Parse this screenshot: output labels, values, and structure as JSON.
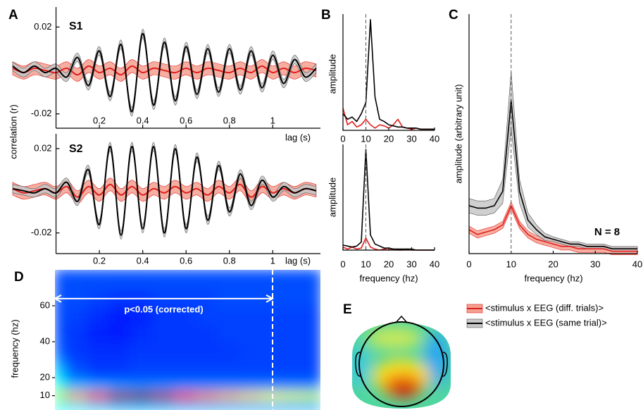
{
  "chart_data": [
    {
      "type": "line",
      "panel": "A",
      "subtitle": "S1",
      "ylabel": "correlation (r)",
      "xlabel": "lag (s)",
      "smooth": true,
      "x": [
        -0.2,
        -0.15,
        -0.1,
        -0.05,
        0,
        0.05,
        0.1,
        0.15,
        0.2,
        0.25,
        0.3,
        0.35,
        0.4,
        0.45,
        0.5,
        0.55,
        0.6,
        0.65,
        0.7,
        0.75,
        0.8,
        0.85,
        0.9,
        0.95,
        1,
        1.05,
        1.1,
        1.15,
        1.2
      ],
      "xlim": [
        -0.2,
        1.22
      ],
      "xticks": [
        0.2,
        0.4,
        0.6,
        0.8,
        1
      ],
      "ylim": [
        -0.0266,
        0.0292
      ],
      "yticks": [
        0.02,
        -0.02
      ],
      "series": [
        {
          "color": "#e0201f",
          "fill": "#f4a090",
          "error": 0.003,
          "values": [
            0.001,
            -0.001,
            0.001,
            0,
            -0.001,
            0.001,
            -0.002,
            0.002,
            -0.001,
            0.001,
            -0.002,
            0.002,
            -0.001,
            0.001,
            0,
            -0.001,
            0.001,
            -0.001,
            0.001,
            0,
            -0.001,
            0.001,
            -0.001,
            0.002,
            -0.001,
            0.001,
            -0.001,
            0.001,
            0
          ]
        },
        {
          "color": "#000000",
          "fill": "#c8c8c8",
          "error": 0.002,
          "values": [
            0.002,
            -0.001,
            0.002,
            -0.001,
            0.001,
            -0.003,
            0.006,
            -0.007,
            0.009,
            -0.012,
            0.012,
            -0.019,
            0.017,
            -0.016,
            0.013,
            -0.014,
            0.011,
            -0.011,
            0.01,
            -0.01,
            0.01,
            -0.009,
            0.009,
            -0.008,
            0.007,
            -0.006,
            0.005,
            -0.003,
            0.001
          ]
        }
      ]
    },
    {
      "type": "line",
      "subtitle": "S2",
      "xlabel": "lag (s)",
      "smooth": true,
      "x": [
        -0.2,
        -0.15,
        -0.1,
        -0.05,
        0,
        0.05,
        0.1,
        0.15,
        0.2,
        0.25,
        0.3,
        0.35,
        0.4,
        0.45,
        0.5,
        0.55,
        0.6,
        0.65,
        0.7,
        0.75,
        0.8,
        0.85,
        0.9,
        0.95,
        1,
        1.05,
        1.1,
        1.15,
        1.2
      ],
      "xlim": [
        -0.2,
        1.22
      ],
      "xticks": [
        0.2,
        0.4,
        0.6,
        0.8,
        1
      ],
      "ylim": [
        -0.0298,
        0.027
      ],
      "yticks": [
        0.02,
        -0.02
      ],
      "series": [
        {
          "color": "#e0201f",
          "fill": "#f4a090",
          "error": 0.003,
          "values": [
            0.001,
            -0.001,
            0,
            0.001,
            -0.001,
            0.002,
            -0.003,
            0.002,
            -0.002,
            0.003,
            -0.002,
            0.002,
            -0.002,
            0.001,
            -0.001,
            0.002,
            -0.001,
            0.001,
            -0.002,
            0.002,
            -0.001,
            0.003,
            -0.003,
            0.002,
            -0.001,
            0.001,
            -0.001,
            0.001,
            0
          ]
        },
        {
          "color": "#000000",
          "fill": "#c8c8c8",
          "error": 0.002,
          "values": [
            0.001,
            0,
            -0.001,
            0.001,
            -0.001,
            0.004,
            -0.005,
            0.01,
            -0.016,
            0.021,
            -0.021,
            0.021,
            -0.018,
            0.021,
            -0.02,
            0.02,
            -0.018,
            0.016,
            -0.014,
            0.012,
            -0.01,
            0.008,
            -0.007,
            0.005,
            -0.003,
            0.002,
            -0.001,
            0.001,
            0
          ]
        }
      ]
    },
    {
      "type": "line",
      "panel": "B",
      "ylabel": "amplitude",
      "marker_x": 10,
      "x": [
        0,
        2,
        4,
        6,
        8,
        10,
        12,
        14,
        16,
        18,
        20,
        22,
        24,
        26,
        28,
        30,
        32,
        34,
        36,
        38,
        40
      ],
      "xlim": [
        0,
        40
      ],
      "xticks": [
        0,
        10,
        20,
        30,
        40
      ],
      "ylim": [
        0,
        1.05
      ],
      "series": [
        {
          "color": "#e0201f",
          "values": [
            0.2,
            0.05,
            0.08,
            0.03,
            0.05,
            0.1,
            0.05,
            0.02,
            0.05,
            0.04,
            0.02,
            0.05,
            0.1,
            0.03,
            0.02,
            0.01,
            0.02,
            0.01,
            0.01,
            0.01,
            0.01
          ]
        },
        {
          "color": "#000000",
          "values": [
            0.15,
            0.1,
            0.12,
            0.08,
            0.15,
            0.25,
            1.0,
            0.3,
            0.1,
            0.08,
            0.05,
            0.04,
            0.03,
            0.03,
            0.02,
            0.02,
            0.02,
            0.01,
            0.01,
            0.01,
            0.01
          ]
        }
      ]
    },
    {
      "type": "line",
      "ylabel": "amplitude",
      "xlabel": "frequency (hz)",
      "marker_x": 10,
      "x": [
        0,
        2,
        4,
        6,
        8,
        10,
        12,
        14,
        16,
        18,
        20,
        22,
        24,
        26,
        28,
        30,
        32,
        34,
        36,
        38,
        40
      ],
      "xlim": [
        0,
        40
      ],
      "xticks": [
        0,
        10,
        20,
        30,
        40
      ],
      "ylim": [
        0,
        1.05
      ],
      "series": [
        {
          "color": "#e0201f",
          "values": [
            0.03,
            0.01,
            0.03,
            0.01,
            0.02,
            0.12,
            0.03,
            0.01,
            0,
            0.01,
            0,
            0.01,
            0,
            0,
            0.01,
            0,
            0,
            0,
            0,
            0,
            0
          ]
        },
        {
          "color": "#000000",
          "values": [
            0.05,
            0.04,
            0.03,
            0.04,
            0.08,
            1.0,
            0.15,
            0.06,
            0.04,
            0.02,
            0.02,
            0.01,
            0.01,
            0.01,
            0.01,
            0.01,
            0,
            0,
            0,
            0,
            0
          ]
        }
      ]
    },
    {
      "type": "line",
      "panel": "C",
      "ylabel": "amplitude (arbitrary unit)",
      "xlabel": "frequency (hz)",
      "annotation": "N = 8",
      "marker_x": 10,
      "x": [
        0,
        2,
        4,
        6,
        8,
        10,
        12,
        14,
        16,
        18,
        20,
        22,
        24,
        26,
        28,
        30,
        32,
        34,
        36,
        38,
        40
      ],
      "xlim": [
        0,
        40
      ],
      "xticks": [
        0,
        10,
        20,
        30,
        40
      ],
      "ylim": [
        0,
        1
      ],
      "series": [
        {
          "color": "#e0201f",
          "fill": "#f4a090",
          "error": 0.015,
          "values": [
            0.1,
            0.08,
            0.09,
            0.1,
            0.12,
            0.2,
            0.12,
            0.08,
            0.06,
            0.05,
            0.04,
            0.03,
            0.03,
            0.02,
            0.02,
            0.02,
            0.02,
            0.01,
            0.01,
            0.01,
            0.01
          ]
        },
        {
          "color": "#000000",
          "fill": "#c8c8c8",
          "error": [
            0.03,
            0.03,
            0.03,
            0.03,
            0.05,
            0.12,
            0.05,
            0.03,
            0.02,
            0.015,
            0.01,
            0.01,
            0.01,
            0.01,
            0.01,
            0.01,
            0.01,
            0.01,
            0.01,
            0.01,
            0.01
          ],
          "values": [
            0.2,
            0.19,
            0.19,
            0.2,
            0.26,
            0.64,
            0.26,
            0.14,
            0.1,
            0.07,
            0.06,
            0.05,
            0.04,
            0.04,
            0.03,
            0.03,
            0.03,
            0.02,
            0.02,
            0.02,
            0.02
          ]
        }
      ]
    },
    {
      "type": "heatmap",
      "panel": "D",
      "ylabel": "frequency (hz)",
      "marker_x": 1,
      "annotation": {
        "text": "p<0.05 (corrected)",
        "x_range": [
          0,
          1
        ],
        "y": 64
      },
      "xlim": [
        0,
        1.22
      ],
      "ylim": [
        2,
        80
      ],
      "yticks": [
        10,
        20,
        40,
        60
      ],
      "x": [
        0,
        0.1,
        0.2,
        0.3,
        0.4,
        0.5,
        0.6,
        0.7,
        0.8,
        0.9,
        1,
        1.1,
        1.2
      ],
      "y": [
        5,
        10,
        15,
        20,
        25,
        35,
        45,
        55,
        65,
        75
      ],
      "z": [
        [
          0.38,
          0.35,
          0.32,
          0.3,
          0.3,
          0.3,
          0.3,
          0.3,
          0.3,
          0.3,
          0.3,
          0.3,
          0.3
        ],
        [
          0.55,
          0.72,
          0.88,
          0.97,
          1,
          0.95,
          0.85,
          0.75,
          0.7,
          0.66,
          0.62,
          0.6,
          0.58
        ],
        [
          0.42,
          0.32,
          0.3,
          0.28,
          0.27,
          0.27,
          0.27,
          0.27,
          0.27,
          0.27,
          0.27,
          0.27,
          0.27
        ],
        [
          0.36,
          0.24,
          0.2,
          0.2,
          0.2,
          0.2,
          0.2,
          0.2,
          0.2,
          0.2,
          0.2,
          0.2,
          0.2
        ],
        [
          0.3,
          0.2,
          0.18,
          0.18,
          0.19,
          0.19,
          0.19,
          0.19,
          0.19,
          0.19,
          0.19,
          0.19,
          0.19
        ],
        [
          0.22,
          0.18,
          0.17,
          0.17,
          0.18,
          0.18,
          0.18,
          0.18,
          0.18,
          0.19,
          0.19,
          0.19,
          0.19
        ],
        [
          0.2,
          0.18,
          0.16,
          0.15,
          0.17,
          0.18,
          0.18,
          0.18,
          0.19,
          0.19,
          0.19,
          0.19,
          0.19
        ],
        [
          0.2,
          0.19,
          0.17,
          0.15,
          0.16,
          0.18,
          0.18,
          0.19,
          0.19,
          0.19,
          0.19,
          0.19,
          0.19
        ],
        [
          0.2,
          0.2,
          0.19,
          0.18,
          0.18,
          0.19,
          0.19,
          0.19,
          0.2,
          0.2,
          0.2,
          0.2,
          0.2
        ],
        [
          0.2,
          0.2,
          0.2,
          0.2,
          0.2,
          0.2,
          0.2,
          0.2,
          0.2,
          0.2,
          0.2,
          0.2,
          0.2
        ]
      ]
    }
  ],
  "topography": {
    "panel": "E"
  },
  "legend": [
    {
      "name": "<stimulus x EEG (diff. trials)>",
      "color": "#e0201f",
      "fill": "#f4a090"
    },
    {
      "name": "<stimulus x EEG (same trial)>",
      "color": "#000000",
      "fill": "#c8c8c8"
    }
  ]
}
